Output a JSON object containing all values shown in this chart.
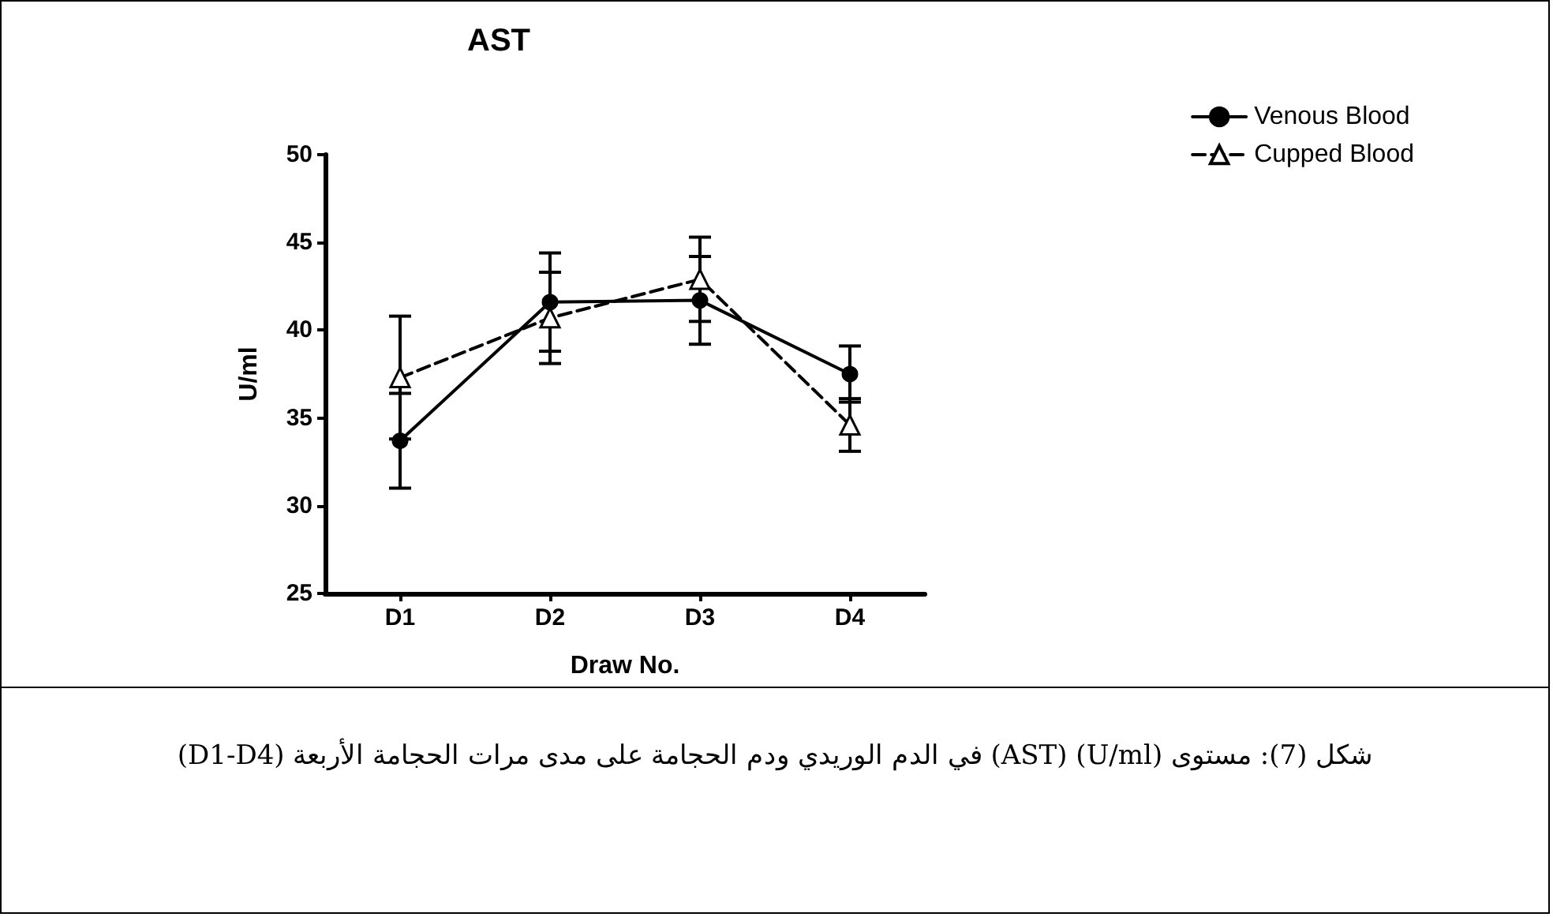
{
  "chart_data": {
    "type": "line",
    "title": "AST",
    "xlabel": "Draw No.",
    "ylabel": "U/ml",
    "categories": [
      "D1",
      "D2",
      "D3",
      "D4"
    ],
    "series": [
      {
        "name": "Venous Blood",
        "color": "#000000",
        "values": [
          33.7,
          41.6,
          41.7,
          37.5
        ],
        "errors": [
          2.7,
          2.8,
          2.5,
          1.6
        ],
        "marker": "circle",
        "line_style": "solid"
      },
      {
        "name": "Cupped Blood",
        "color": "#000000",
        "values": [
          37.3,
          40.7,
          42.9,
          34.6
        ],
        "errors": [
          3.5,
          2.6,
          2.4,
          1.5
        ],
        "marker": "triangle",
        "line_style": "dashed"
      }
    ],
    "ylim": [
      25,
      50
    ],
    "yticks": [
      25,
      30,
      35,
      40,
      45,
      50
    ],
    "grid": false,
    "legend": "top right",
    "annotations": [
      "شكل (7): مستوى (U/ml) (AST) في الدم الوريدي ودم الحجامة على مدى مرات الحجامة الأربعة (D1-D4)"
    ]
  }
}
